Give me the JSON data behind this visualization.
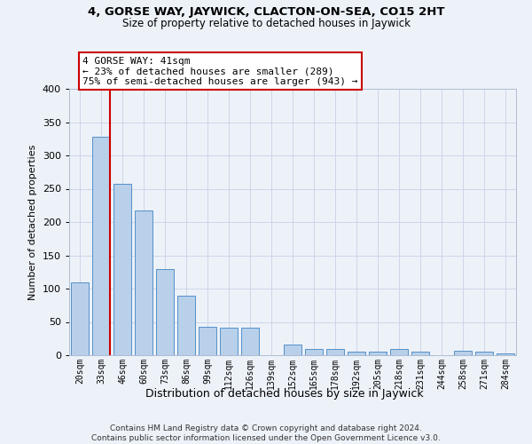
{
  "title1": "4, GORSE WAY, JAYWICK, CLACTON-ON-SEA, CO15 2HT",
  "title2": "Size of property relative to detached houses in Jaywick",
  "xlabel": "Distribution of detached houses by size in Jaywick",
  "ylabel": "Number of detached properties",
  "footer1": "Contains HM Land Registry data © Crown copyright and database right 2024.",
  "footer2": "Contains public sector information licensed under the Open Government Licence v3.0.",
  "categories": [
    "20sqm",
    "33sqm",
    "46sqm",
    "60sqm",
    "73sqm",
    "86sqm",
    "99sqm",
    "112sqm",
    "126sqm",
    "139sqm",
    "152sqm",
    "165sqm",
    "178sqm",
    "192sqm",
    "205sqm",
    "218sqm",
    "231sqm",
    "244sqm",
    "258sqm",
    "271sqm",
    "284sqm"
  ],
  "values": [
    110,
    328,
    257,
    218,
    129,
    90,
    43,
    41,
    41,
    0,
    16,
    10,
    9,
    5,
    6,
    9,
    5,
    0,
    7,
    5,
    3
  ],
  "bar_color": "#b8d0ea",
  "bar_edge_color": "#5590c8",
  "grid_color": "#ccd6e8",
  "annotation_line1": "4 GORSE WAY: 41sqm",
  "annotation_line2": "← 23% of detached houses are smaller (289)",
  "annotation_line3": "75% of semi-detached houses are larger (943) →",
  "annotation_box_facecolor": "#ffffff",
  "annotation_box_edgecolor": "#cc0000",
  "vline_color": "#cc0000",
  "vline_xindex": 1,
  "ylim_max": 400,
  "yticks": [
    0,
    50,
    100,
    150,
    200,
    250,
    300,
    350,
    400
  ],
  "background_color": "#edf2f9"
}
